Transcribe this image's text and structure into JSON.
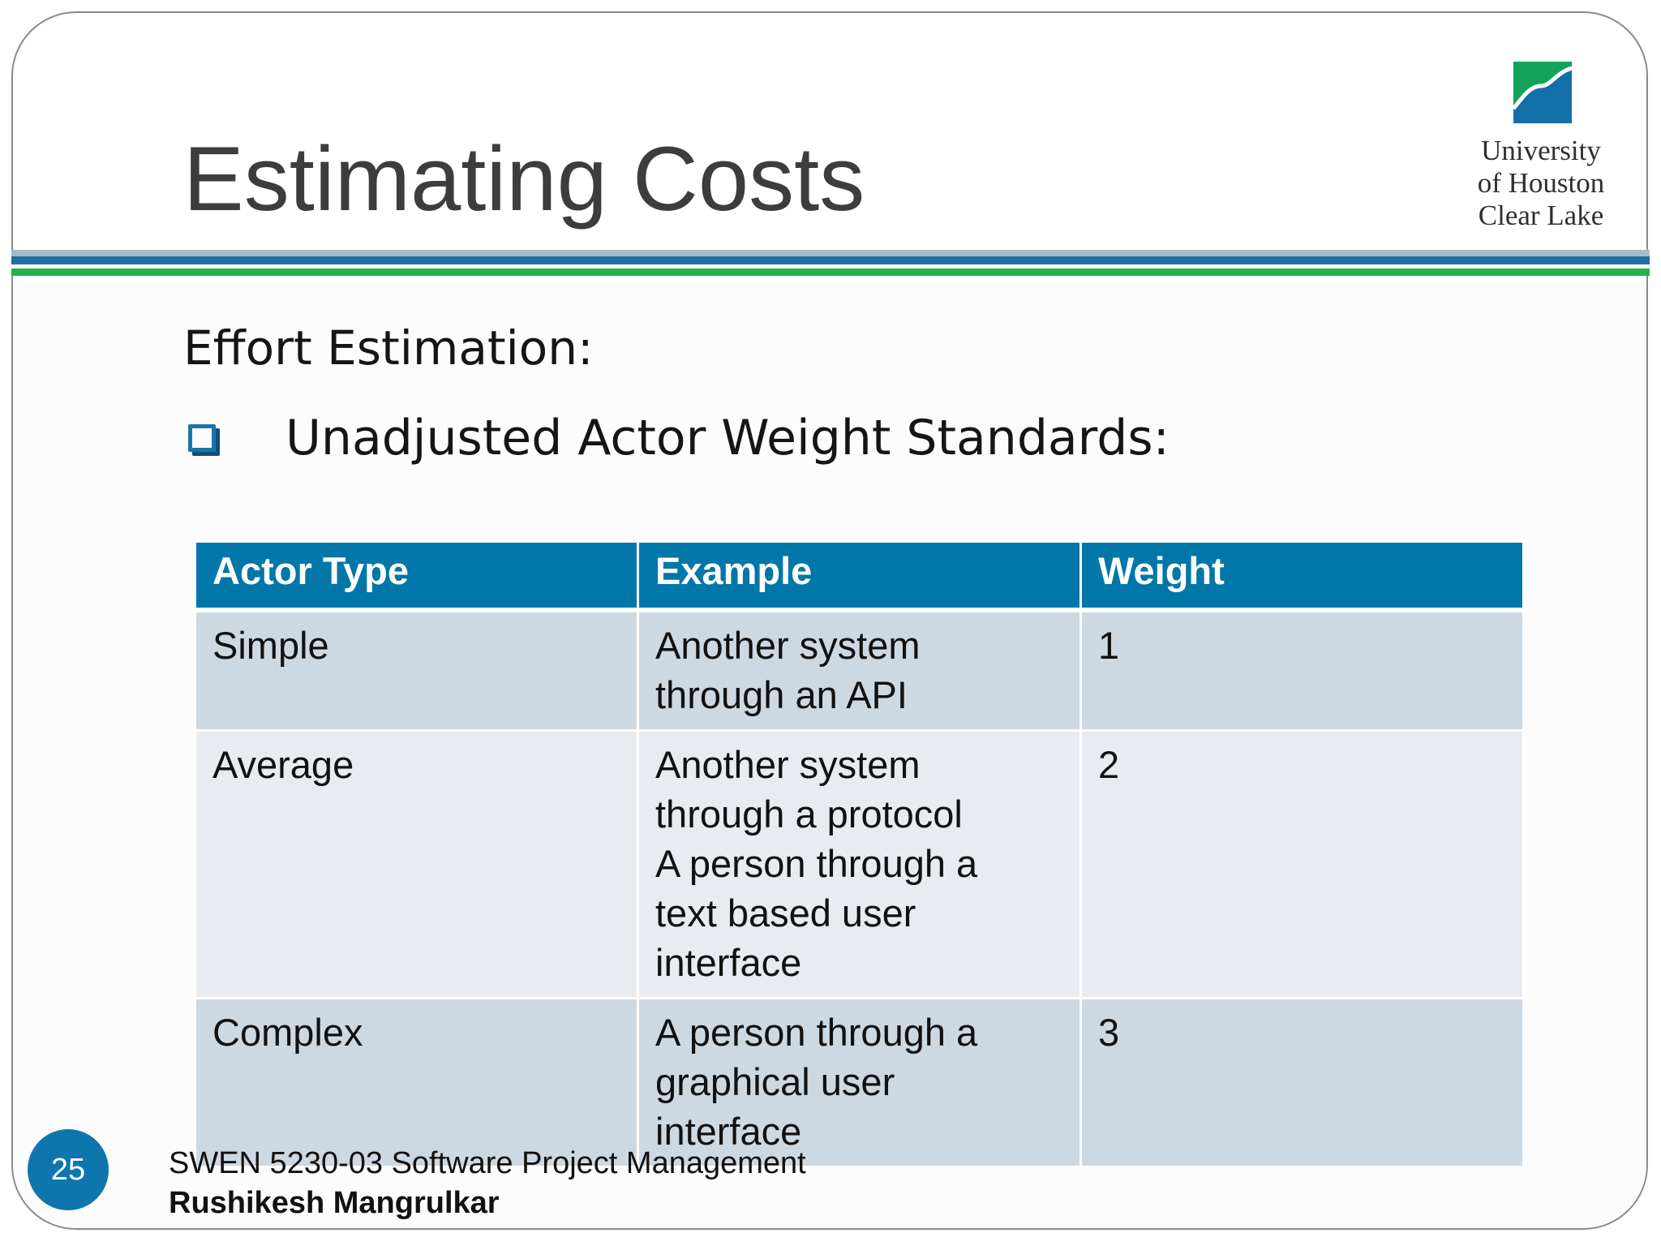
{
  "slide": {
    "title": "Estimating Costs",
    "subtitle": "Effort Estimation:",
    "bullet": "Unadjusted Actor Weight Standards:",
    "page_number": "25"
  },
  "logo": {
    "line1": "University",
    "line2": "of Houston",
    "line3": "Clear Lake"
  },
  "table": {
    "headers": [
      "Actor Type",
      "Example",
      "Weight"
    ],
    "rows": [
      {
        "actor_type": "Simple",
        "example_lines": [
          "Another system",
          "through an API"
        ],
        "weight": "1"
      },
      {
        "actor_type": "Average",
        "example_lines": [
          "Another system",
          "through a protocol",
          "A person through a",
          "text based user",
          "interface"
        ],
        "weight": "2"
      },
      {
        "actor_type": "Complex",
        "example_lines": [
          "A person through a",
          "graphical user",
          "interface"
        ],
        "weight": "3"
      }
    ]
  },
  "footer": {
    "course": "SWEN 5230-03 Software Project Management",
    "author": "Rushikesh Mangrulkar"
  },
  "colors": {
    "header_fill": "#0077a8",
    "row_odd_fill": "#cdd9e2",
    "row_even_fill": "#e8ebef",
    "stripe_blue": "#1f6fa3",
    "stripe_green": "#22b14c",
    "badge_fill": "#0f76ad"
  }
}
